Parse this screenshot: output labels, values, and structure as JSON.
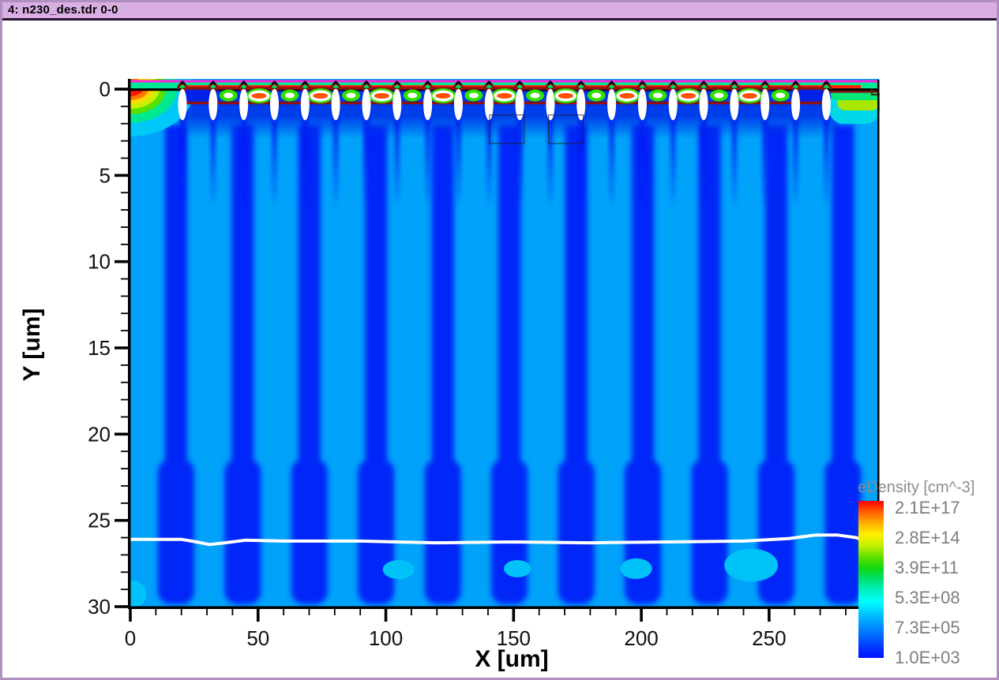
{
  "window": {
    "title": "4: n230_des.tdr 0-0",
    "titlebar_bg": "#d9aee3",
    "border_color": "#af8fc0"
  },
  "chart_data": {
    "type": "heatmap",
    "subtype": "2D TCAD contour plot of electron density in a silicon pixel-sensor cross-section",
    "title": "",
    "xlabel": "X [um]",
    "ylabel": "Y [um]",
    "x_axis": {
      "label": "X [um]",
      "major_ticks": [
        0,
        50,
        100,
        150,
        200,
        250
      ],
      "minor_tick_step": 10,
      "range": [
        0,
        293
      ]
    },
    "y_axis": {
      "label": "Y [um]",
      "major_ticks": [
        0,
        5,
        10,
        15,
        20,
        25,
        30
      ],
      "minor_tick_step": 1,
      "range": [
        -0.6,
        30.1
      ],
      "direction": "down"
    },
    "legend": {
      "title": "eDensity [cm^-3]",
      "position": "right-bottom",
      "tick_labels": [
        "2.1E+17",
        "2.8E+14",
        "3.9E+11",
        "5.3E+08",
        "7.3E+05",
        "1.0E+03"
      ],
      "colorbar_stops": [
        "#FF0000",
        "#FF6000",
        "#FFB000",
        "#FFF000",
        "#C0F000",
        "#60E000",
        "#10D810",
        "#00E070",
        "#00F0C0",
        "#00FFFF",
        "#00C8FF",
        "#0098FF",
        "#0068FF",
        "#0038FF",
        "#0010FF"
      ]
    },
    "palette": {
      "bulk_light": "#00A2FA",
      "bulk_dark": "#0026F8",
      "upper_dark_band": "#0030E8",
      "streak_dark": "#0018F0",
      "surface_top_line": "#FF20DC",
      "surface_teal_band": "#00E896",
      "surface_red_band": "#FF2000",
      "gap_green": "#00C838",
      "implant_outline": "#8B1010",
      "lens_green": "#30E000",
      "lens_white": "#FFFFFF",
      "lens_core_orange": "#FF5000",
      "depletion_line": "#FFFFFF",
      "patch_cyan": "#00C2F8",
      "axis_color": "#000000"
    },
    "left_edge_bands": [
      "#00C8F8",
      "#00E890",
      "#58E000",
      "#C8F000",
      "#FFD800",
      "#FF7800",
      "#FF1800"
    ],
    "right_edge_bands": [
      "#00D8E8",
      "#A8E800",
      "#00E878"
    ],
    "structure": {
      "description": "Periodic n-type pixel implants at the top surface (y=0): white low-density ovals flank maroon-outlined wells; lens-shaped high-density pockets (orange core 2.1E+17) sit between them under a red accumulation band; magenta top contact line and teal oxide band above; dark/light blue bulk columns below; white contour marks depletion boundary near y=26.3 um.",
      "surface_oval_count": 22,
      "surface_oval_first_x_um": 20.4,
      "surface_oval_pitch_um": 12.0,
      "u_well_gaps": [
        0,
        20
      ],
      "bulk_column_first_x_um": 17.9,
      "bulk_column_pitch_um": 26.1,
      "bulk_column_count": 11,
      "depletion_depth_um": 26.3,
      "outline_rects_um": [
        [
          140.6,
          1.5,
          13.6,
          1.65
        ],
        [
          163.7,
          1.5,
          13.6,
          1.65
        ]
      ]
    },
    "depletion_line_um": [
      [
        0,
        26.1
      ],
      [
        20,
        26.1
      ],
      [
        26,
        26.25
      ],
      [
        31,
        26.4
      ],
      [
        37,
        26.3
      ],
      [
        45,
        26.15
      ],
      [
        60,
        26.2
      ],
      [
        90,
        26.2
      ],
      [
        120,
        26.3
      ],
      [
        150,
        26.25
      ],
      [
        180,
        26.3
      ],
      [
        210,
        26.25
      ],
      [
        240,
        26.2
      ],
      [
        258,
        26.05
      ],
      [
        268,
        25.85
      ],
      [
        277,
        25.85
      ],
      [
        284,
        26.0
      ],
      [
        290,
        26.3
      ],
      [
        293,
        26.45
      ]
    ],
    "cyan_patches_um": [
      [
        105,
        27.85,
        6.2,
        0.55
      ],
      [
        151.5,
        27.8,
        5.3,
        0.5
      ],
      [
        198,
        27.8,
        6.2,
        0.6
      ],
      [
        243,
        27.6,
        10.5,
        0.96
      ],
      [
        1.2,
        29.3,
        5,
        0.8
      ]
    ]
  }
}
